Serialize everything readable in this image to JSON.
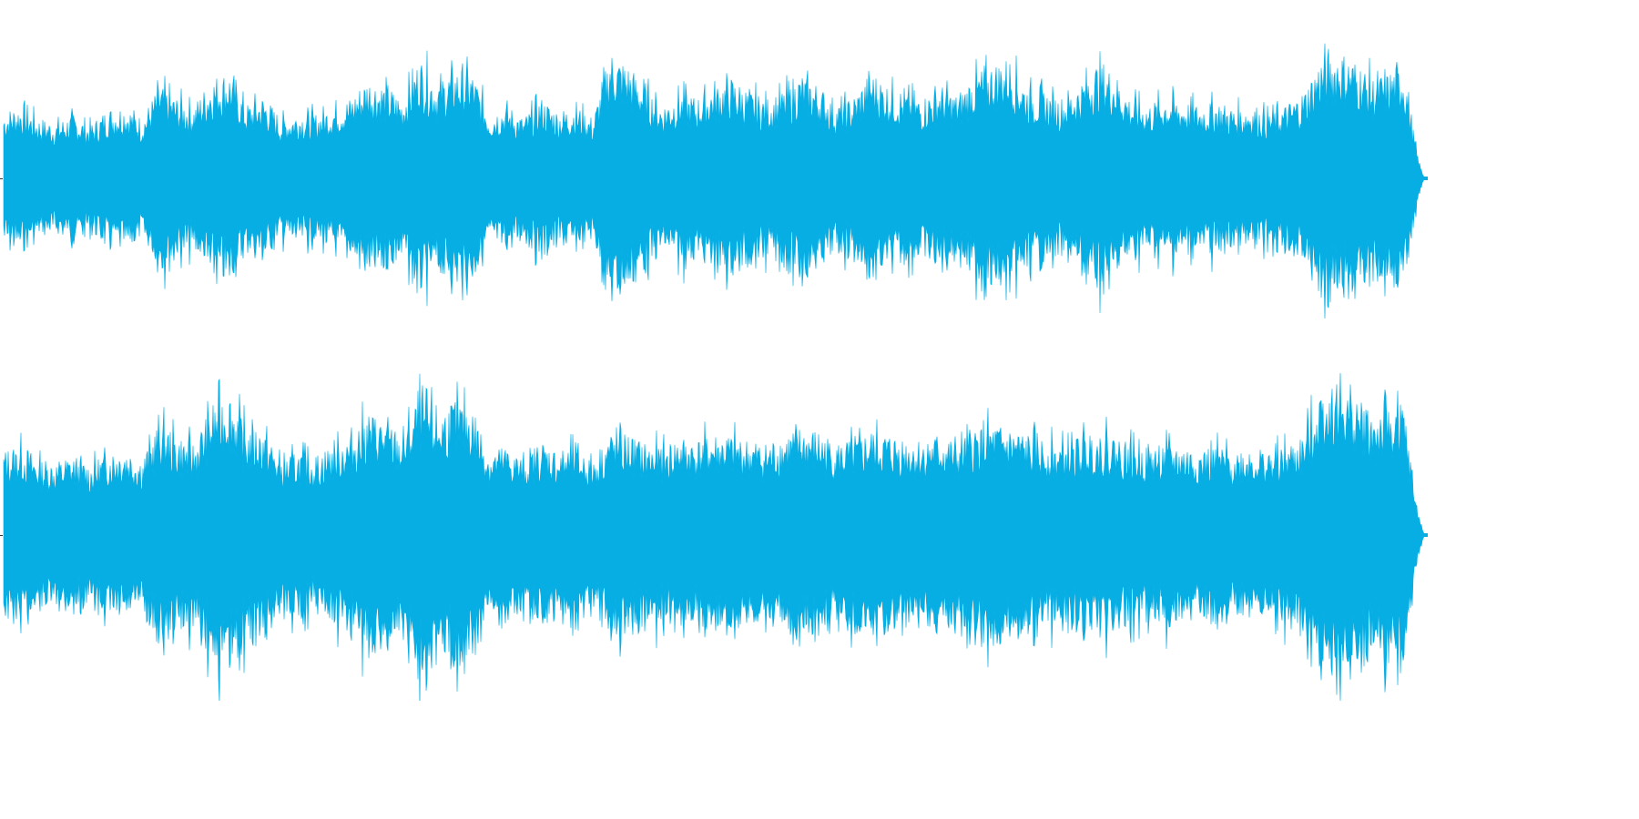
{
  "waveform": {
    "color": "#06aee4",
    "channels": [
      {
        "name": "left",
        "amplitude_envelope": [
          0.5,
          0.55,
          0.45,
          0.42,
          0.48,
          0.4,
          0.52,
          0.55,
          0.45,
          0.7,
          0.6,
          0.55,
          0.75,
          0.8,
          0.55,
          0.62,
          0.45,
          0.5,
          0.48,
          0.55,
          0.6,
          0.75,
          0.7,
          0.6,
          0.9,
          0.72,
          0.82,
          0.8,
          0.5,
          0.55,
          0.45,
          0.6,
          0.5,
          0.55,
          0.45,
          0.95,
          0.85,
          0.7,
          0.55,
          0.65,
          0.6,
          0.7,
          0.75,
          0.65,
          0.6,
          0.65,
          0.78,
          0.7,
          0.55,
          0.6,
          0.8,
          0.7,
          0.65,
          0.6,
          0.7,
          0.62,
          0.78,
          0.85,
          0.9,
          0.7,
          0.65,
          0.6,
          0.7,
          0.85,
          0.8,
          0.6,
          0.55,
          0.62,
          0.58,
          0.55,
          0.58,
          0.52,
          0.55,
          0.5,
          0.55,
          0.65,
          0.9,
          0.95,
          0.88,
          0.75,
          0.8,
          0.9,
          0.3
        ]
      },
      {
        "name": "right",
        "amplitude_envelope": [
          0.55,
          0.6,
          0.5,
          0.48,
          0.52,
          0.46,
          0.55,
          0.58,
          0.5,
          0.75,
          0.65,
          0.6,
          0.85,
          0.95,
          0.7,
          0.7,
          0.5,
          0.55,
          0.52,
          0.6,
          0.65,
          0.8,
          0.75,
          0.65,
          0.92,
          0.8,
          0.88,
          0.85,
          0.55,
          0.58,
          0.5,
          0.62,
          0.55,
          0.58,
          0.5,
          0.68,
          0.66,
          0.6,
          0.58,
          0.64,
          0.62,
          0.66,
          0.65,
          0.62,
          0.6,
          0.66,
          0.7,
          0.68,
          0.6,
          0.62,
          0.68,
          0.66,
          0.64,
          0.62,
          0.66,
          0.6,
          0.7,
          0.72,
          0.7,
          0.66,
          0.62,
          0.6,
          0.64,
          0.68,
          0.66,
          0.6,
          0.58,
          0.6,
          0.58,
          0.56,
          0.58,
          0.55,
          0.58,
          0.55,
          0.58,
          0.65,
          0.98,
          1.0,
          0.92,
          0.8,
          0.85,
          0.88,
          0.3
        ]
      }
    ]
  }
}
